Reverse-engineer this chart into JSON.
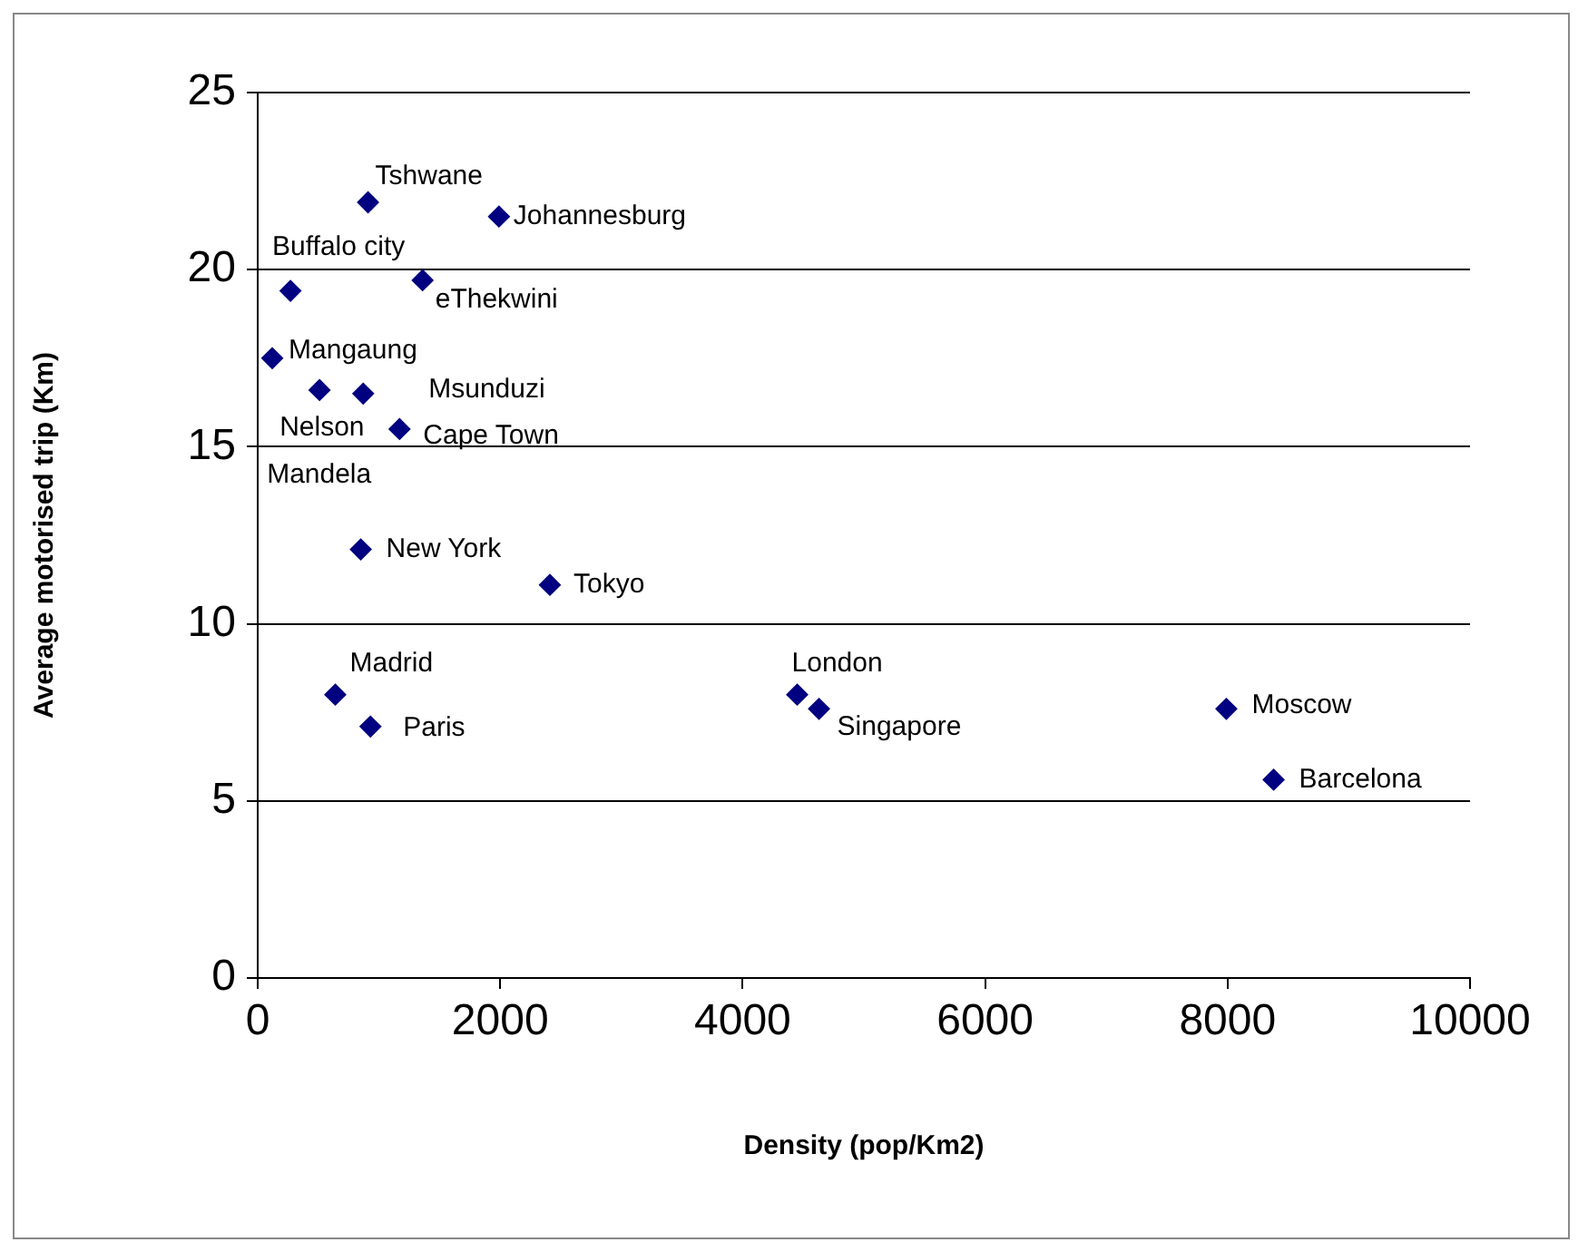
{
  "chart_data": {
    "type": "scatter",
    "xlabel": "Density (pop/Km2)",
    "ylabel": "Average motorised trip (Km)",
    "x": [
      910,
      1990,
      270,
      1360,
      120,
      510,
      870,
      1170,
      850,
      2410,
      640,
      930,
      4450,
      4630,
      7990,
      8380
    ],
    "series": [
      {
        "color": "#000080",
        "values": [
          21.9,
          21.5,
          19.4,
          19.7,
          17.5,
          16.6,
          16.5,
          15.5,
          12.1,
          11.1,
          8.0,
          7.1,
          8.0,
          7.6,
          7.6,
          5.6
        ]
      }
    ],
    "xlim": [
      0,
      10000
    ],
    "xticks": [
      0,
      2000,
      4000,
      6000,
      8000,
      10000
    ],
    "ylim": [
      0,
      25
    ],
    "yticks": [
      0,
      5,
      10,
      15,
      20,
      25
    ],
    "grid": "y",
    "legend": false,
    "marker": "diamond",
    "annotations": [
      {
        "text": "Tshwane",
        "x": 910,
        "y": 21.9
      },
      {
        "text": "Johannesburg",
        "x": 1990,
        "y": 21.5
      },
      {
        "text": "Buffalo city",
        "x": 270,
        "y": 19.4
      },
      {
        "text": "eThekwini",
        "x": 1360,
        "y": 19.7
      },
      {
        "text": "Mangaung",
        "x": 120,
        "y": 17.5
      },
      {
        "text": "Nelson Mandela",
        "x": 510,
        "y": 16.6
      },
      {
        "text": "Msunduzi",
        "x": 870,
        "y": 16.5
      },
      {
        "text": "Cape Town",
        "x": 1170,
        "y": 15.5
      },
      {
        "text": "New York",
        "x": 850,
        "y": 12.1
      },
      {
        "text": "Tokyo",
        "x": 2410,
        "y": 11.1
      },
      {
        "text": "Madrid",
        "x": 640,
        "y": 8.0
      },
      {
        "text": "Paris",
        "x": 930,
        "y": 7.1
      },
      {
        "text": "London",
        "x": 4450,
        "y": 8.0
      },
      {
        "text": "Singapore",
        "x": 4630,
        "y": 7.6
      },
      {
        "text": "Moscow",
        "x": 7990,
        "y": 7.6
      },
      {
        "text": "Barcelona",
        "x": 8380,
        "y": 5.6
      }
    ]
  }
}
